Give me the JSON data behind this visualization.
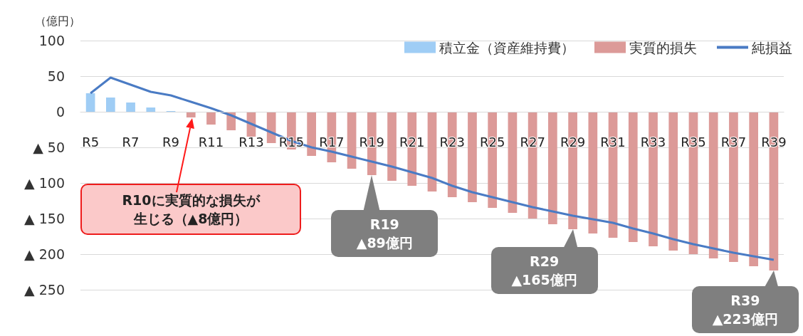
{
  "chart_data": {
    "type": "bar",
    "ylabel": "（億円）",
    "categories": [
      "R5",
      null,
      "R7",
      null,
      "R9",
      null,
      "R11",
      null,
      "R13",
      null,
      "R15",
      null,
      "R17",
      null,
      "R19",
      null,
      "R21",
      null,
      "R23",
      null,
      "R25",
      null,
      "R27",
      null,
      "R29",
      null,
      "R31",
      null,
      "R33",
      null,
      "R35",
      null,
      "R37",
      null,
      "R39"
    ],
    "stacked": true,
    "series": [
      {
        "name": "積立金（資産維持費）",
        "color": "#9fcdf5",
        "values": [
          26,
          20,
          13,
          6,
          1,
          null,
          null,
          null,
          null,
          null,
          null,
          null,
          null,
          null,
          null,
          null,
          null,
          null,
          null,
          null,
          null,
          null,
          null,
          null,
          null,
          null,
          null,
          null,
          null,
          null,
          null,
          null,
          null,
          null,
          null
        ]
      },
      {
        "name": "実質的損失",
        "color": "#dc9a98",
        "values": [
          null,
          null,
          null,
          null,
          null,
          -8,
          -18,
          -26,
          -35,
          -44,
          -53,
          -62,
          -71,
          -80,
          -89,
          -97,
          -104,
          -112,
          -120,
          -127,
          -135,
          -142,
          -150,
          -158,
          -165,
          -171,
          -177,
          -183,
          -189,
          -195,
          -200,
          -206,
          -211,
          -217,
          -223
        ]
      },
      {
        "name": "純損益",
        "type": "line",
        "color": "#4a7bc4",
        "values": [
          26,
          48,
          38,
          28,
          23,
          14,
          5,
          -5,
          -17,
          -29,
          -41,
          -50,
          -56,
          -63,
          -70,
          -77,
          -85,
          -93,
          -104,
          -113,
          -120,
          -127,
          -134,
          -140,
          -146,
          -151,
          -156,
          -164,
          -171,
          -179,
          -186,
          -192,
          -198,
          -203,
          -208
        ]
      }
    ],
    "ylim": [
      -250,
      100
    ],
    "yticks": [
      100,
      50,
      0,
      {
        "value": -50,
        "label": "▲ 50"
      },
      {
        "value": -100,
        "label": "▲ 100"
      },
      {
        "value": -150,
        "label": "▲ 150"
      },
      {
        "value": -200,
        "label": "▲ 200"
      },
      {
        "value": -250,
        "label": "▲ 250"
      }
    ],
    "grid": "y",
    "legend": "top right",
    "marker": "none",
    "annotations": [
      "R10に実質的な損失が生じる（▲8億円）",
      {
        "text": "R19\n▲89億円",
        "x": "R19",
        "y": -89
      },
      {
        "text": "R29\n▲165億円",
        "x": "R29",
        "y": -165
      },
      {
        "text": "R39\n▲223億円",
        "x": "R39",
        "y": -223
      }
    ]
  }
}
